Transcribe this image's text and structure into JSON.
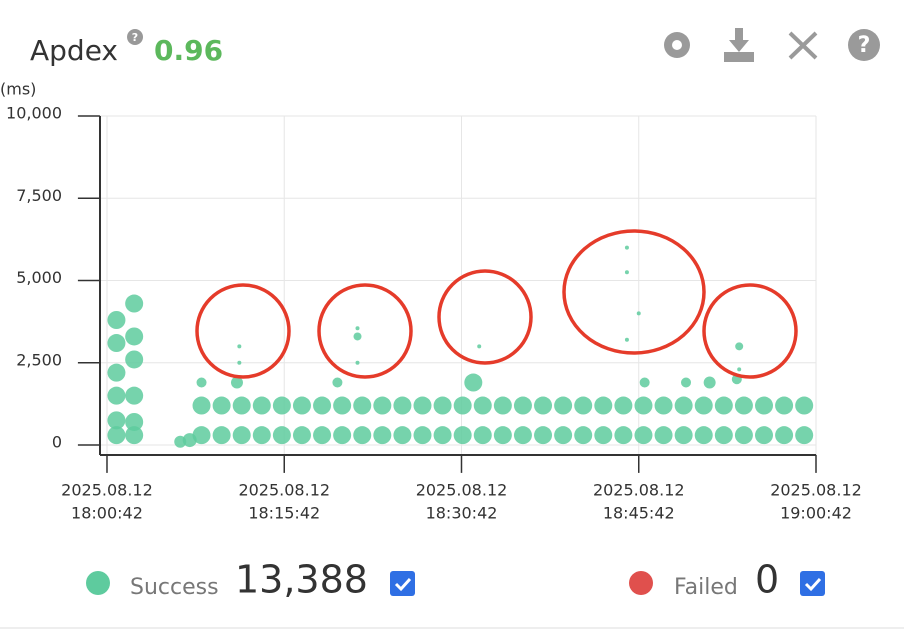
{
  "header": {
    "title": "Apdex",
    "help": "?",
    "score": "0.96"
  },
  "chart_data": {
    "type": "scatter",
    "y_unit": "(ms)",
    "xlim": [
      -0.6,
      60
    ],
    "ylim": [
      -300,
      10000
    ],
    "xticks": [
      {
        "value": 0,
        "label": [
          "2025.08.12",
          "18:00:42"
        ]
      },
      {
        "value": 15,
        "label": [
          "2025.08.12",
          "18:15:42"
        ]
      },
      {
        "value": 30,
        "label": [
          "2025.08.12",
          "18:30:42"
        ]
      },
      {
        "value": 45,
        "label": [
          "2025.08.12",
          "18:45:42"
        ]
      },
      {
        "value": 60,
        "label": [
          "2025.08.12",
          "19:00:42"
        ]
      }
    ],
    "yticks": [
      0,
      {
        "value": 2500,
        "label": "2,500"
      },
      {
        "value": 5000,
        "label": "5,000"
      },
      {
        "value": 7500,
        "label": "7,500"
      },
      {
        "value": 10000,
        "label": "10,000"
      }
    ],
    "grid": true,
    "series": [
      {
        "name": "Success",
        "color": "#5ecb9e",
        "x": [
          0.8,
          0.8,
          0.8,
          0.8,
          0.8,
          0.8,
          2.3,
          2.3,
          2.3,
          2.3,
          2.3,
          2.3,
          6.2,
          7.0,
          8.0,
          9.7,
          11.4,
          13.1,
          14.8,
          16.5,
          18.2,
          19.9,
          21.6,
          23.3,
          25.0,
          26.7,
          28.4,
          30.1,
          31.8,
          33.5,
          35.2,
          36.9,
          38.6,
          40.3,
          42.0,
          43.7,
          45.4,
          47.1,
          48.8,
          50.5,
          52.2,
          53.9,
          55.6,
          57.3,
          59.0,
          8.0,
          9.7,
          11.4,
          13.1,
          14.8,
          16.5,
          18.2,
          19.9,
          21.6,
          23.3,
          25.0,
          26.7,
          28.4,
          30.1,
          31.8,
          33.5,
          35.2,
          36.9,
          38.6,
          40.3,
          42.0,
          43.7,
          45.4,
          47.1,
          48.8,
          50.5,
          52.2,
          53.9,
          55.6,
          57.3,
          59.0,
          8.0,
          11.0,
          19.5,
          31.0,
          45.5,
          49.0,
          51.0,
          53.3,
          11.2,
          11.2,
          21.2,
          21.2,
          21.2,
          31.5,
          44.0,
          44.0,
          44.0,
          45.0,
          53.5,
          53.5
        ],
        "y": [
          300,
          750,
          1500,
          2200,
          3100,
          3800,
          300,
          700,
          1500,
          2600,
          3300,
          4300,
          100,
          150,
          300,
          300,
          300,
          300,
          300,
          300,
          300,
          300,
          300,
          300,
          300,
          300,
          300,
          300,
          300,
          300,
          300,
          300,
          300,
          300,
          300,
          300,
          300,
          300,
          300,
          300,
          300,
          300,
          300,
          300,
          300,
          1200,
          1200,
          1200,
          1200,
          1200,
          1200,
          1200,
          1200,
          1200,
          1200,
          1200,
          1200,
          1200,
          1200,
          1200,
          1200,
          1200,
          1200,
          1200,
          1200,
          1200,
          1200,
          1200,
          1200,
          1200,
          1200,
          1200,
          1200,
          1200,
          1200,
          1200,
          1900,
          1900,
          1900,
          1900,
          1900,
          1900,
          1900,
          2000,
          3000,
          2500,
          3550,
          3300,
          2500,
          3000,
          6000,
          5250,
          3200,
          4000,
          3000,
          2300
        ],
        "sizes": [
          9,
          9,
          9,
          9,
          9,
          9,
          9,
          9,
          9,
          9,
          9,
          9,
          6,
          7,
          9,
          9,
          9,
          9,
          9,
          9,
          9,
          9,
          9,
          9,
          9,
          9,
          9,
          9,
          9,
          9,
          9,
          9,
          9,
          9,
          9,
          9,
          9,
          9,
          9,
          9,
          9,
          9,
          9,
          9,
          9,
          9,
          9,
          9,
          9,
          9,
          9,
          9,
          9,
          9,
          9,
          9,
          9,
          9,
          9,
          9,
          9,
          9,
          9,
          9,
          9,
          9,
          9,
          9,
          9,
          9,
          9,
          9,
          9,
          9,
          9,
          9,
          5,
          6,
          5,
          9,
          5,
          5,
          6,
          5,
          2,
          2,
          2,
          4,
          2,
          2,
          2,
          2,
          2,
          2,
          4,
          2
        ]
      },
      {
        "name": "Failed",
        "color": "#e0504d",
        "x": [],
        "y": [],
        "sizes": []
      }
    ]
  },
  "legend": {
    "counts": [
      13388,
      0
    ],
    "count_labels": [
      "13,388",
      "0"
    ]
  }
}
